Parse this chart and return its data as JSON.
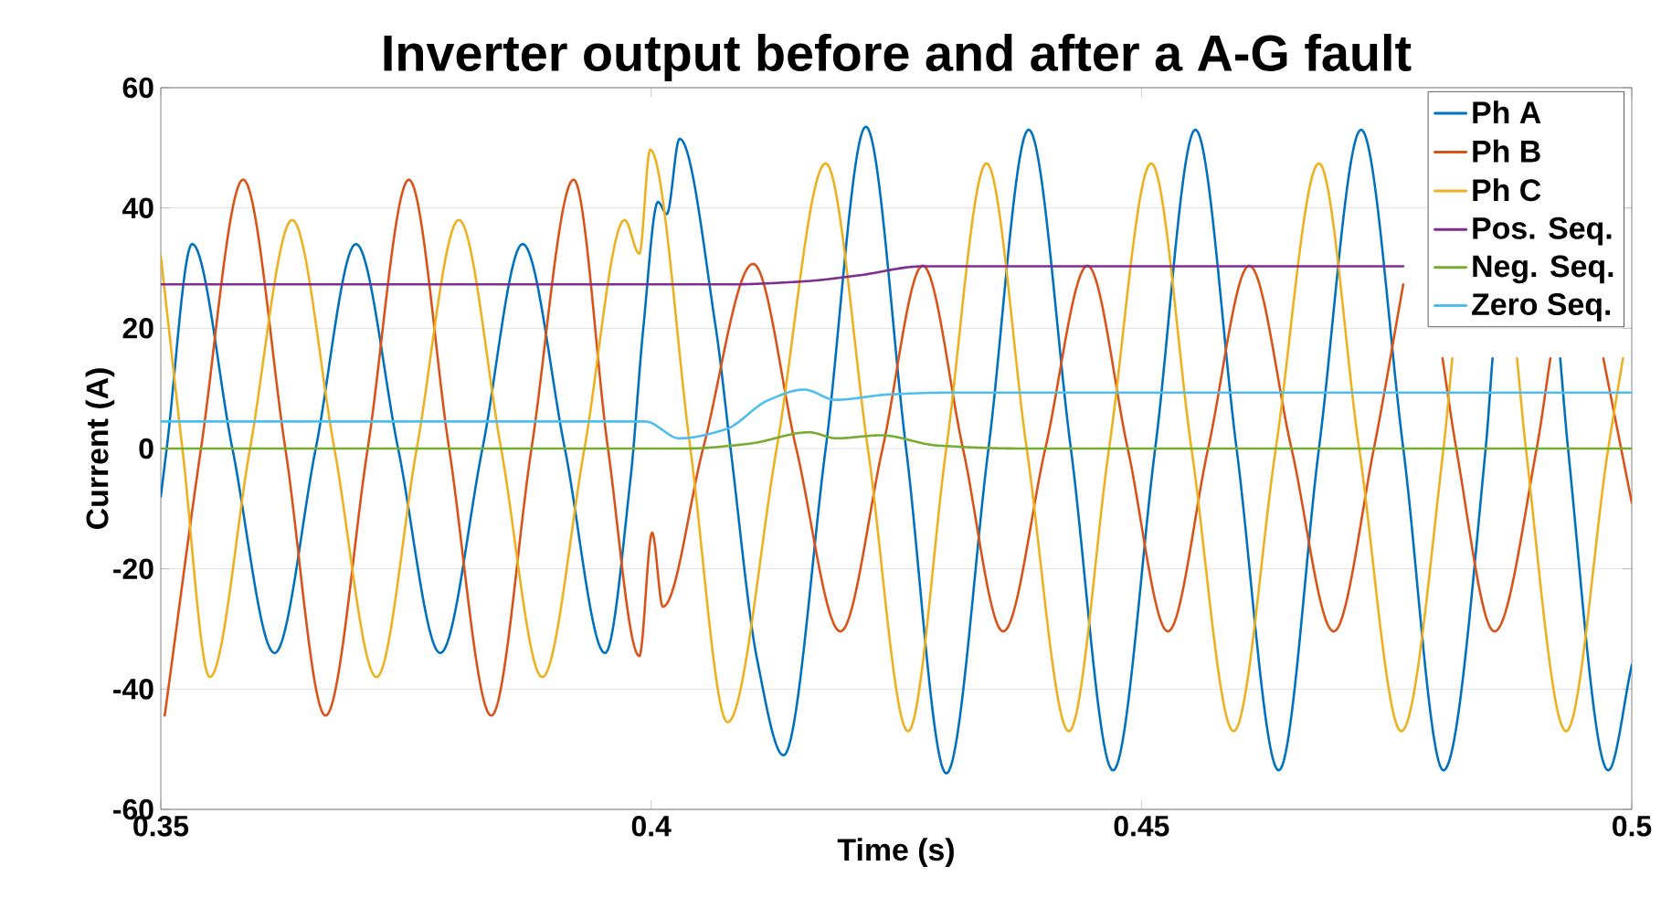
{
  "chart_data": {
    "type": "line",
    "title": "Inverter output before and after a A-G fault",
    "xlabel": "Time (s)",
    "ylabel": "Current (A)",
    "xlim": [
      0.35,
      0.5
    ],
    "xticks": [
      0.35,
      0.4,
      0.45,
      0.5
    ],
    "ylim": [
      -60,
      60
    ],
    "yticks": [
      -60,
      -40,
      -20,
      0,
      20,
      40,
      60
    ],
    "grid": "y",
    "legend": "top right",
    "series": [
      {
        "name": "Ph A",
        "color": "#0072bd",
        "x": [
          0.35,
          0.3506,
          0.3532,
          0.3573,
          0.3616,
          0.3658,
          0.3699,
          0.3742,
          0.3785,
          0.3828,
          0.3869,
          0.3912,
          0.3953,
          0.3979,
          0.3992,
          0.4007,
          0.4016,
          0.4029,
          0.4066,
          0.4081,
          0.4108,
          0.4135,
          0.4178,
          0.4219,
          0.426,
          0.4301,
          0.4344,
          0.4385,
          0.4428,
          0.4471,
          0.4514,
          0.4555,
          0.4597,
          0.464,
          0.4681,
          0.4724,
          0.4767,
          0.4808,
          0.4851,
          0.4858,
          0.4892,
          0.4927,
          0.4935,
          0.4976,
          0.5
        ],
        "values": [
          -8,
          0,
          34,
          0,
          -34,
          0,
          34,
          0,
          -34,
          0,
          34,
          0,
          -34,
          -5,
          20,
          41,
          39,
          51.5,
          20,
          0,
          -35,
          -51,
          0,
          53.5,
          0,
          -54,
          0,
          53,
          0,
          -53.5,
          0,
          53,
          0,
          -53.5,
          0,
          53,
          0,
          -53.5,
          0,
          15,
          null,
          15,
          0,
          -53.5,
          -36
        ]
      },
      {
        "name": "Ph B",
        "color": "#d95319",
        "x": [
          0.3504,
          0.3541,
          0.3584,
          0.3627,
          0.3668,
          0.3711,
          0.3753,
          0.3794,
          0.3837,
          0.3878,
          0.3921,
          0.3956,
          0.3988,
          0.4001,
          0.4012,
          0.4053,
          0.4104,
          0.4148,
          0.4193,
          0.4236,
          0.4277,
          0.4318,
          0.4359,
          0.4402,
          0.4445,
          0.4486,
          0.4527,
          0.4568,
          0.461,
          0.4653,
          0.4696,
          0.4737,
          0.4767,
          0.478,
          0.4807,
          0.4821,
          0.486,
          0.4903,
          0.4917,
          0.4944,
          0.4971,
          0.5
        ],
        "values": [
          -44.4,
          0,
          44.7,
          0,
          -44.4,
          0,
          44.7,
          0,
          -44.4,
          0,
          44.7,
          0,
          -34.5,
          -14,
          -26.3,
          0,
          30.7,
          0,
          -30.4,
          0,
          30.4,
          0,
          -30.4,
          0,
          30.4,
          0,
          -30.4,
          0,
          30.4,
          0,
          -30.4,
          0,
          27.3,
          null,
          15,
          0,
          -30.4,
          0,
          15,
          null,
          15,
          -9
        ]
      },
      {
        "name": "Ph C",
        "color": "#edb120",
        "x": [
          0.35,
          0.3522,
          0.355,
          0.3591,
          0.3634,
          0.3677,
          0.372,
          0.3761,
          0.3804,
          0.3847,
          0.3889,
          0.3932,
          0.3973,
          0.3988,
          0.3999,
          0.404,
          0.4078,
          0.4128,
          0.4178,
          0.4221,
          0.4262,
          0.4301,
          0.4342,
          0.4383,
          0.4426,
          0.4467,
          0.451,
          0.4551,
          0.4594,
          0.4637,
          0.4681,
          0.4722,
          0.4765,
          0.4808,
          0.4817,
          0.4849,
          0.4883,
          0.4892,
          0.4933,
          0.4976,
          0.4991
        ],
        "values": [
          32,
          0,
          -38,
          0,
          38,
          0,
          -38,
          0,
          38,
          0,
          -38,
          0,
          38,
          32.4,
          49.7,
          0,
          -45.5,
          0,
          47.4,
          0,
          -47,
          0,
          47.4,
          0,
          -47,
          0,
          47.4,
          0,
          -47,
          0,
          47.4,
          0,
          -47,
          0,
          15,
          null,
          15,
          0,
          -47,
          0,
          15
        ]
      },
      {
        "name": "Pos. Seq.",
        "color": "#7e2f8e",
        "x": [
          0.35,
          0.4081,
          0.4156,
          0.4212,
          0.4277,
          0.4767
        ],
        "values": [
          27.3,
          27.3,
          27.8,
          28.8,
          30.3,
          30.3
        ]
      },
      {
        "name": "Neg. Seq.",
        "color": "#77ac30",
        "x": [
          0.35,
          0.4035,
          0.41,
          0.4161,
          0.4189,
          0.4234,
          0.4292,
          0.4379,
          0.5
        ],
        "values": [
          0,
          0,
          0.8,
          2.7,
          1.7,
          2.2,
          0.5,
          0,
          0
        ]
      },
      {
        "name": "Zero Seq.",
        "color": "#4dbeee",
        "x": [
          0.35,
          0.3994,
          0.4029,
          0.4076,
          0.4119,
          0.4156,
          0.4188,
          0.4243,
          0.4305,
          0.5
        ],
        "values": [
          4.5,
          4.5,
          1.7,
          3.2,
          8,
          9.8,
          8.1,
          9,
          9.3,
          9.3
        ]
      }
    ]
  }
}
